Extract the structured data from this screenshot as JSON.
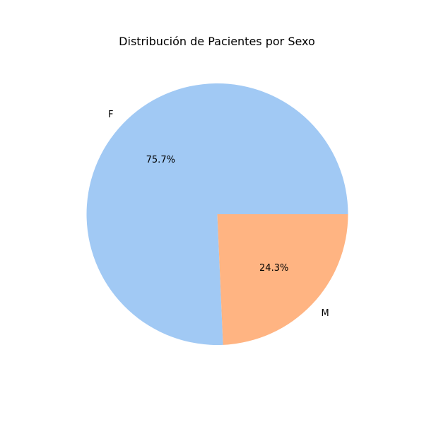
{
  "chart_data": {
    "type": "pie",
    "title": "Distribución de Pacientes por Sexo",
    "labels": [
      "F",
      "M"
    ],
    "values": [
      75.7,
      24.3
    ],
    "percent_labels": [
      "75.7%",
      "24.3%"
    ],
    "colors": [
      "#a1c9f4",
      "#ffb482"
    ],
    "start_angle": 0,
    "direction": "counterclockwise",
    "legend": "none"
  }
}
